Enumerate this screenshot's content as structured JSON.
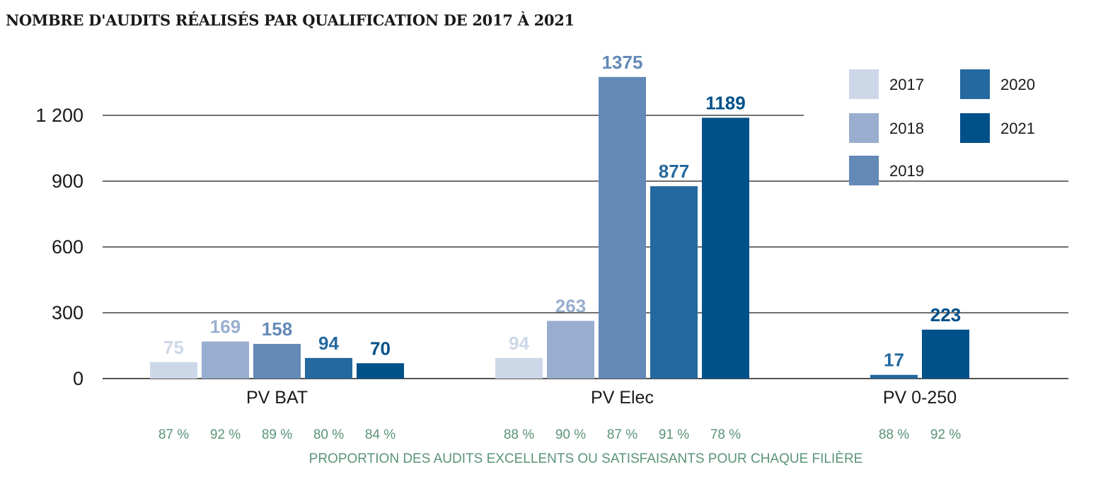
{
  "chart_data": {
    "type": "bar",
    "title": "NOMBRE D'AUDITS RÉALISÉS PAR QUALIFICATION DE 2017 À 2021",
    "ylim": [
      0,
      1400
    ],
    "y_ticks": [
      0,
      300,
      600,
      900,
      1200
    ],
    "y_tick_labels": [
      "0",
      "300",
      "600",
      "900",
      "1 200"
    ],
    "categories": [
      "PV BAT",
      "PV Elec",
      "PV 0-250"
    ],
    "series": [
      {
        "name": "2017",
        "color": "#ccd8e8",
        "values": [
          75,
          94,
          null
        ],
        "labels": [
          "75",
          "94",
          ""
        ],
        "pct": [
          "87 %",
          "88 %",
          ""
        ]
      },
      {
        "name": "2018",
        "color": "#99aecf",
        "values": [
          169,
          263,
          null
        ],
        "labels": [
          "169",
          "263",
          ""
        ],
        "pct": [
          "92 %",
          "90 %",
          ""
        ]
      },
      {
        "name": "2019",
        "color": "#6389b7",
        "values": [
          158,
          1375,
          null
        ],
        "labels": [
          "158",
          "1375",
          ""
        ],
        "pct": [
          "89 %",
          "87 %",
          ""
        ]
      },
      {
        "name": "2020",
        "color": "#24699f",
        "values": [
          94,
          877,
          17
        ],
        "labels": [
          "94",
          "877",
          "17"
        ],
        "pct": [
          "80 %",
          "91 %",
          "88 %"
        ]
      },
      {
        "name": "2021",
        "color": "#00508a",
        "values": [
          70,
          1189,
          223
        ],
        "labels": [
          "70",
          "1189",
          "223"
        ],
        "pct": [
          "84 %",
          "78 %",
          "92 %"
        ]
      }
    ],
    "footnote": "PROPORTION DES AUDITS EXCELLENTS OU SATISFAISANTS POUR CHAQUE FILIÈRE",
    "legend_position": "top-right",
    "grid": true
  }
}
